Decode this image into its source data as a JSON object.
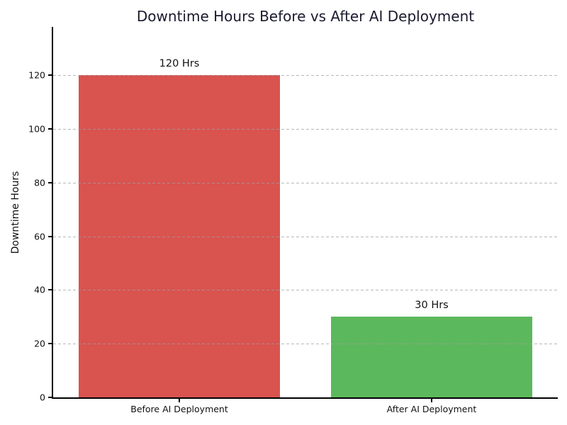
{
  "figure": {
    "title": "Downtime Hours Before vs After AI Deployment",
    "ylabel": "Downtime Hours"
  },
  "colors": {
    "bar_before": "#d9534f",
    "bar_after": "#5cb85c",
    "title_text": "#1a1a2e",
    "axis_spine": "#000000",
    "grid_line": "#a0a0a0",
    "background": "#ffffff"
  },
  "chart_data": {
    "type": "bar",
    "title": "Downtime Hours Before vs After AI Deployment",
    "categories": [
      "Before AI Deployment",
      "After AI Deployment"
    ],
    "values": [
      120,
      30
    ],
    "bar_labels": [
      "120 Hrs",
      "30 Hrs"
    ],
    "bar_colors": [
      "#d9534f",
      "#5cb85c"
    ],
    "xlabel": "",
    "ylabel": "Downtime Hours",
    "ylim": [
      0,
      138
    ],
    "yticks": [
      0,
      20,
      40,
      60,
      80,
      100,
      120
    ],
    "grid": {
      "axis": "y",
      "style": "dashed",
      "drawn_over_bars": true
    },
    "legend": "none",
    "bar_width_fraction": 0.8
  }
}
